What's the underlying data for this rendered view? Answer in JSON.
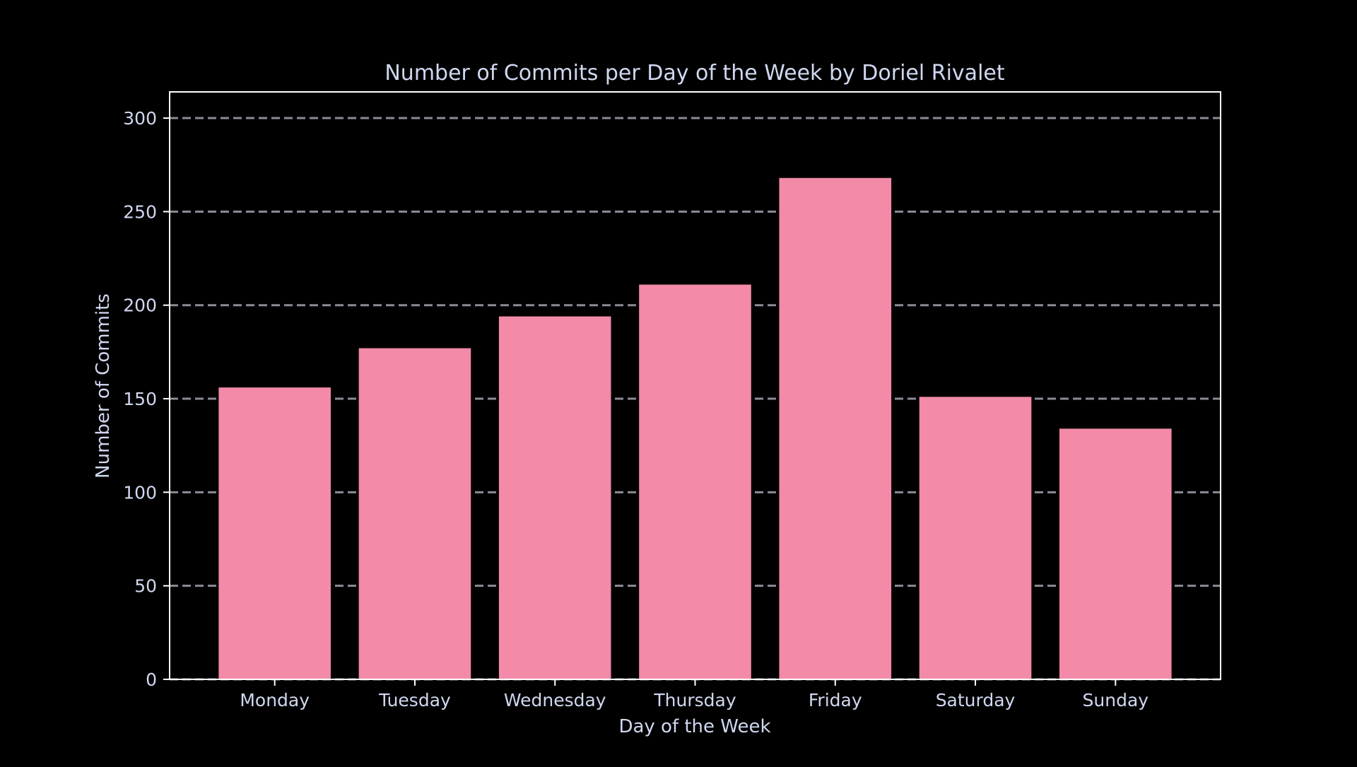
{
  "colors": {
    "background": "#000000",
    "bar": "#f28aa8",
    "text": "#d0d8f0",
    "axis": "#ffffff",
    "grid": "#8a8c96"
  },
  "chart_data": {
    "type": "bar",
    "title": "Number of Commits per Day of the Week by Doriel Rivalet",
    "xlabel": "Day of the Week",
    "ylabel": "Number of Commits",
    "categories": [
      "Monday",
      "Tuesday",
      "Wednesday",
      "Thursday",
      "Friday",
      "Saturday",
      "Sunday"
    ],
    "values": [
      156,
      177,
      194,
      211,
      268,
      151,
      134
    ],
    "ylim": [
      0,
      314
    ],
    "yticks": [
      0,
      50,
      100,
      150,
      200,
      250,
      300
    ],
    "grid": "horizontal-dashed",
    "legend": "none"
  }
}
